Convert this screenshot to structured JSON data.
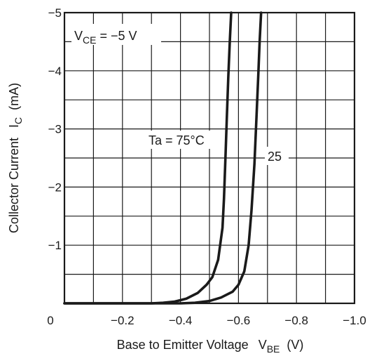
{
  "chart_data": {
    "type": "line",
    "title": "",
    "xlabel": {
      "main": "Base to Emitter Voltage",
      "symbol": "V",
      "sub": "BE",
      "unit": "(V)"
    },
    "ylabel": {
      "main": "Collector Current",
      "symbol": "I",
      "sub": "C",
      "unit": "(mA)"
    },
    "xlim": [
      0,
      -1.0
    ],
    "ylim": [
      0,
      -5
    ],
    "x_ticks": [
      0,
      -0.2,
      -0.4,
      -0.6,
      -0.8,
      -1.0
    ],
    "x_tick_labels": [
      "0",
      "−0.2",
      "−0.4",
      "−0.6",
      "−0.8",
      "−1.0"
    ],
    "y_ticks": [
      -1,
      -2,
      -3,
      -4,
      -5
    ],
    "y_tick_labels": [
      "−1",
      "−2",
      "−3",
      "−4",
      "−5"
    ],
    "grid": true,
    "condition": {
      "symbol": "V",
      "sub": "CE",
      "rest": " = −5 V"
    },
    "series": [
      {
        "name": "Ta = 75°C",
        "x": [
          0,
          -0.3,
          -0.34,
          -0.38,
          -0.42,
          -0.46,
          -0.49,
          -0.51,
          -0.53,
          -0.545,
          -0.55,
          -0.555,
          -0.56,
          -0.565,
          -0.57,
          -0.575
        ],
        "y": [
          0,
          0,
          -0.01,
          -0.03,
          -0.08,
          -0.18,
          -0.32,
          -0.45,
          -0.75,
          -1.3,
          -1.8,
          -2.5,
          -3.2,
          -3.9,
          -4.5,
          -5.0
        ]
      },
      {
        "name": "25",
        "x": [
          0,
          -0.4,
          -0.45,
          -0.5,
          -0.54,
          -0.58,
          -0.6,
          -0.62,
          -0.635,
          -0.645,
          -0.655,
          -0.662,
          -0.668,
          -0.673,
          -0.678
        ],
        "y": [
          0,
          0,
          -0.01,
          -0.04,
          -0.1,
          -0.2,
          -0.32,
          -0.55,
          -1.0,
          -1.6,
          -2.4,
          -3.2,
          -3.9,
          -4.5,
          -5.0
        ]
      }
    ]
  }
}
